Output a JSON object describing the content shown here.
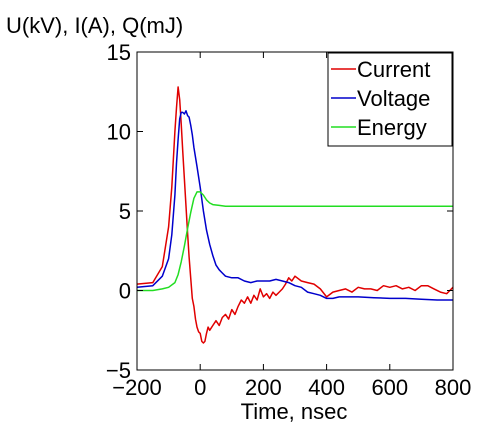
{
  "chart_data": {
    "type": "line",
    "title": "",
    "ylabel": "U(kV), I(A), Q(mJ)",
    "xlabel": "Time, nsec",
    "xlim": [
      -200,
      800
    ],
    "ylim": [
      -5,
      15
    ],
    "xticks": [
      -200,
      0,
      200,
      400,
      600,
      800
    ],
    "yticks": [
      -5,
      0,
      5,
      10,
      15
    ],
    "grid": false,
    "legend_position": "top-right",
    "series": [
      {
        "name": "Current",
        "color": "#e00000",
        "x": [
          -200,
          -150,
          -120,
          -100,
          -90,
          -80,
          -75,
          -70,
          -65,
          -60,
          -55,
          -50,
          -45,
          -40,
          -35,
          -30,
          -25,
          -20,
          -15,
          -10,
          -5,
          0,
          5,
          10,
          15,
          20,
          25,
          30,
          40,
          50,
          60,
          70,
          80,
          90,
          100,
          110,
          120,
          130,
          140,
          150,
          160,
          170,
          180,
          190,
          200,
          210,
          220,
          230,
          240,
          250,
          260,
          270,
          280,
          290,
          300,
          320,
          340,
          360,
          380,
          400,
          420,
          440,
          460,
          480,
          500,
          520,
          540,
          560,
          580,
          600,
          620,
          640,
          660,
          680,
          700,
          720,
          740,
          760,
          780,
          800
        ],
        "y": [
          0.4,
          0.5,
          1.5,
          4.0,
          6.5,
          10.0,
          11.5,
          12.8,
          12.0,
          10.5,
          8.7,
          7.0,
          5.3,
          3.6,
          2.1,
          0.8,
          -0.5,
          -1.0,
          -1.8,
          -2.3,
          -2.6,
          -2.7,
          -3.2,
          -3.3,
          -3.2,
          -2.7,
          -2.3,
          -2.5,
          -2.2,
          -1.9,
          -2.2,
          -1.7,
          -1.5,
          -1.8,
          -1.2,
          -1.5,
          -1.0,
          -0.6,
          -0.8,
          -0.4,
          -0.8,
          -0.3,
          -0.6,
          0.1,
          -0.4,
          -0.2,
          -0.5,
          -0.1,
          -0.3,
          -0.1,
          0.1,
          0.4,
          0.8,
          0.6,
          0.9,
          0.6,
          0.5,
          0.4,
          0.1,
          -0.4,
          -0.1,
          0.0,
          0.1,
          -0.1,
          0.2,
          0.1,
          0.1,
          0.0,
          0.3,
          0.2,
          0.3,
          0.1,
          0.2,
          0.0,
          0.3,
          0.3,
          0.1,
          -0.1,
          -0.2,
          0.2
        ]
      },
      {
        "name": "Voltage",
        "color": "#0000cc",
        "x": [
          -200,
          -150,
          -120,
          -100,
          -90,
          -80,
          -75,
          -70,
          -65,
          -60,
          -55,
          -50,
          -45,
          -40,
          -35,
          -30,
          -25,
          -20,
          -10,
          0,
          10,
          20,
          30,
          40,
          50,
          60,
          70,
          80,
          100,
          120,
          140,
          160,
          180,
          200,
          220,
          240,
          260,
          280,
          300,
          320,
          340,
          360,
          380,
          400,
          420,
          440,
          460,
          480,
          500,
          550,
          600,
          650,
          700,
          750,
          800
        ],
        "y": [
          0.2,
          0.3,
          0.9,
          2.0,
          3.5,
          6.0,
          8.0,
          9.5,
          10.8,
          11.2,
          11.2,
          11.1,
          11.3,
          11.0,
          10.9,
          10.4,
          9.8,
          9.0,
          7.8,
          6.5,
          5.0,
          3.8,
          2.9,
          2.2,
          1.6,
          1.3,
          1.1,
          0.9,
          0.8,
          0.8,
          0.6,
          0.5,
          0.6,
          0.6,
          0.6,
          0.7,
          0.6,
          0.5,
          0.3,
          0.2,
          -0.1,
          -0.2,
          -0.3,
          -0.5,
          -0.5,
          -0.4,
          -0.4,
          -0.4,
          -0.4,
          -0.45,
          -0.5,
          -0.5,
          -0.55,
          -0.6,
          -0.6
        ]
      },
      {
        "name": "Energy",
        "color": "#22dd22",
        "x": [
          -200,
          -150,
          -120,
          -100,
          -80,
          -70,
          -60,
          -50,
          -40,
          -30,
          -20,
          -10,
          0,
          10,
          20,
          30,
          40,
          60,
          80,
          100,
          150,
          200,
          300,
          400,
          500,
          600,
          700,
          800
        ],
        "y": [
          0.0,
          0.0,
          0.1,
          0.2,
          0.5,
          1.0,
          1.8,
          2.8,
          3.9,
          4.9,
          5.8,
          6.2,
          6.2,
          6.0,
          5.7,
          5.5,
          5.4,
          5.35,
          5.3,
          5.3,
          5.3,
          5.3,
          5.3,
          5.3,
          5.3,
          5.3,
          5.3,
          5.3
        ]
      }
    ]
  }
}
